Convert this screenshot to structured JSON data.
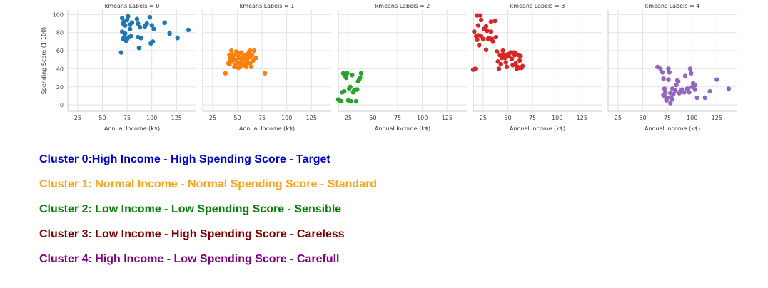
{
  "chart_data": {
    "type": "scatter",
    "xlabel": "Annual Income (k$)",
    "ylabel": "Spending Score (1-100)",
    "xlim": [
      15,
      145
    ],
    "ylim": [
      -7,
      105
    ],
    "xticks": [
      25,
      50,
      75,
      100,
      125
    ],
    "yticks": [
      0,
      20,
      40,
      60,
      80,
      100
    ],
    "grid": true,
    "shared_axes": true,
    "panels": [
      {
        "title": "kmeans Labels = 0",
        "color": "#1f77b4",
        "points": [
          [
            70,
            96
          ],
          [
            72,
            92
          ],
          [
            73,
            88
          ],
          [
            75,
            94
          ],
          [
            76,
            98
          ],
          [
            78,
            89
          ],
          [
            80,
            91
          ],
          [
            73,
            79
          ],
          [
            78,
            84
          ],
          [
            75,
            73
          ],
          [
            77,
            75
          ],
          [
            85,
            95
          ],
          [
            86,
            90
          ],
          [
            88,
            86
          ],
          [
            93,
            87
          ],
          [
            98,
            97
          ],
          [
            95,
            90
          ],
          [
            100,
            88
          ],
          [
            102,
            84
          ],
          [
            113,
            91
          ],
          [
            118,
            79
          ],
          [
            126,
            74
          ],
          [
            137,
            83
          ],
          [
            72,
            75
          ],
          [
            71,
            73
          ],
          [
            79,
            76
          ],
          [
            86,
            75
          ],
          [
            87,
            63
          ],
          [
            89,
            74
          ],
          [
            99,
            68
          ],
          [
            101,
            70
          ],
          [
            69,
            58
          ],
          [
            74,
            71
          ],
          [
            71,
            90
          ],
          [
            70,
            81
          ]
        ]
      },
      {
        "title": "kmeans Labels = 1",
        "color": "#ff7f0e",
        "points": [
          [
            38,
            35
          ],
          [
            41,
            46
          ],
          [
            42,
            55
          ],
          [
            43,
            52
          ],
          [
            44,
            60
          ],
          [
            45,
            48
          ],
          [
            46,
            55
          ],
          [
            47,
            42
          ],
          [
            48,
            50
          ],
          [
            49,
            59
          ],
          [
            50,
            47
          ],
          [
            50,
            55
          ],
          [
            51,
            41
          ],
          [
            52,
            52
          ],
          [
            53,
            46
          ],
          [
            54,
            58
          ],
          [
            54,
            51
          ],
          [
            55,
            44
          ],
          [
            57,
            55
          ],
          [
            58,
            50
          ],
          [
            59,
            42
          ],
          [
            60,
            56
          ],
          [
            60,
            48
          ],
          [
            62,
            59
          ],
          [
            63,
            46
          ],
          [
            63,
            53
          ],
          [
            64,
            42
          ],
          [
            65,
            55
          ],
          [
            66,
            49
          ],
          [
            67,
            60
          ],
          [
            69,
            52
          ],
          [
            43,
            50
          ],
          [
            46,
            51
          ],
          [
            52,
            57
          ],
          [
            55,
            49
          ],
          [
            58,
            45
          ],
          [
            61,
            52
          ],
          [
            63,
            56
          ],
          [
            48,
            44
          ],
          [
            53,
            42
          ],
          [
            78,
            35
          ],
          [
            63,
            60
          ],
          [
            42,
            45
          ],
          [
            56,
            53
          ],
          [
            60,
            46
          ]
        ]
      },
      {
        "title": "kmeans Labels = 2",
        "color": "#2ca02c",
        "points": [
          [
            15,
            6
          ],
          [
            16,
            5
          ],
          [
            18,
            4
          ],
          [
            19,
            14
          ],
          [
            20,
            35
          ],
          [
            21,
            15
          ],
          [
            22,
            32
          ],
          [
            23,
            30
          ],
          [
            24,
            35
          ],
          [
            25,
            5
          ],
          [
            26,
            18
          ],
          [
            27,
            20
          ],
          [
            28,
            4
          ],
          [
            30,
            14
          ],
          [
            31,
            16
          ],
          [
            33,
            4
          ],
          [
            34,
            17
          ],
          [
            35,
            26
          ],
          [
            36,
            28
          ],
          [
            38,
            35
          ],
          [
            37,
            30
          ],
          [
            29,
            33
          ]
        ]
      },
      {
        "title": "kmeans Labels = 3",
        "color": "#d62728",
        "points": [
          [
            15,
            39
          ],
          [
            16,
            81
          ],
          [
            17,
            40
          ],
          [
            18,
            76
          ],
          [
            19,
            72
          ],
          [
            19,
            99
          ],
          [
            20,
            77
          ],
          [
            21,
            66
          ],
          [
            22,
            99
          ],
          [
            23,
            76
          ],
          [
            23,
            94
          ],
          [
            25,
            73
          ],
          [
            28,
            61
          ],
          [
            28,
            87
          ],
          [
            29,
            82
          ],
          [
            30,
            73
          ],
          [
            33,
            81
          ],
          [
            33,
            92
          ],
          [
            34,
            73
          ],
          [
            37,
            93
          ],
          [
            38,
            75
          ],
          [
            39,
            59
          ],
          [
            40,
            48
          ],
          [
            42,
            55
          ],
          [
            43,
            45
          ],
          [
            44,
            52
          ],
          [
            45,
            60
          ],
          [
            46,
            55
          ],
          [
            47,
            52
          ],
          [
            48,
            47
          ],
          [
            49,
            42
          ],
          [
            50,
            56
          ],
          [
            51,
            54
          ],
          [
            53,
            58
          ],
          [
            54,
            51
          ],
          [
            55,
            44
          ],
          [
            56,
            58
          ],
          [
            57,
            55
          ],
          [
            58,
            46
          ],
          [
            59,
            40
          ],
          [
            60,
            42
          ],
          [
            61,
            55
          ],
          [
            62,
            49
          ],
          [
            63,
            54
          ],
          [
            64,
            41
          ],
          [
            65,
            43
          ],
          [
            62,
            41
          ],
          [
            58,
            57
          ],
          [
            20,
            88
          ],
          [
            26,
            84
          ],
          [
            31,
            74
          ],
          [
            35,
            70
          ],
          [
            41,
            40
          ]
        ]
      },
      {
        "title": "kmeans Labels = 4",
        "color": "#9467bd",
        "points": [
          [
            65,
            42
          ],
          [
            68,
            40
          ],
          [
            70,
            36
          ],
          [
            71,
            29
          ],
          [
            71,
            11
          ],
          [
            72,
            10
          ],
          [
            73,
            14
          ],
          [
            74,
            5
          ],
          [
            75,
            8
          ],
          [
            76,
            28
          ],
          [
            76,
            40
          ],
          [
            77,
            36
          ],
          [
            78,
            13
          ],
          [
            78,
            2
          ],
          [
            79,
            8
          ],
          [
            80,
            6
          ],
          [
            81,
            12
          ],
          [
            83,
            16
          ],
          [
            84,
            22
          ],
          [
            85,
            27
          ],
          [
            86,
            26
          ],
          [
            87,
            13
          ],
          [
            88,
            15
          ],
          [
            90,
            17
          ],
          [
            92,
            14
          ],
          [
            93,
            32
          ],
          [
            95,
            18
          ],
          [
            97,
            14
          ],
          [
            98,
            40
          ],
          [
            99,
            35
          ],
          [
            100,
            20
          ],
          [
            101,
            24
          ],
          [
            103,
            22
          ],
          [
            103,
            17
          ],
          [
            113,
            8
          ],
          [
            118,
            15
          ],
          [
            125,
            28
          ],
          [
            137,
            18
          ],
          [
            72,
            18
          ],
          [
            74,
            6
          ],
          [
            80,
            18
          ],
          [
            89,
            16
          ],
          [
            96,
            18
          ],
          [
            105,
            8
          ]
        ]
      }
    ]
  },
  "notes": [
    {
      "text": "Cluster 0:High Income - High Spending Score - Target",
      "color": "#0000cc"
    },
    {
      "text": "Cluster 1: Normal Income - Normal Spending Score - Standard",
      "color": "#ffa31a"
    },
    {
      "text": "Cluster 2: Low Income - Low Spending Score - Sensible",
      "color": "#087f08"
    },
    {
      "text": "Cluster 3: Low Income - High Spending Score - Careless",
      "color": "#800000"
    },
    {
      "text": "Cluster 4: High Income - Low Spending Score - Carefull",
      "color": "#800080"
    }
  ]
}
